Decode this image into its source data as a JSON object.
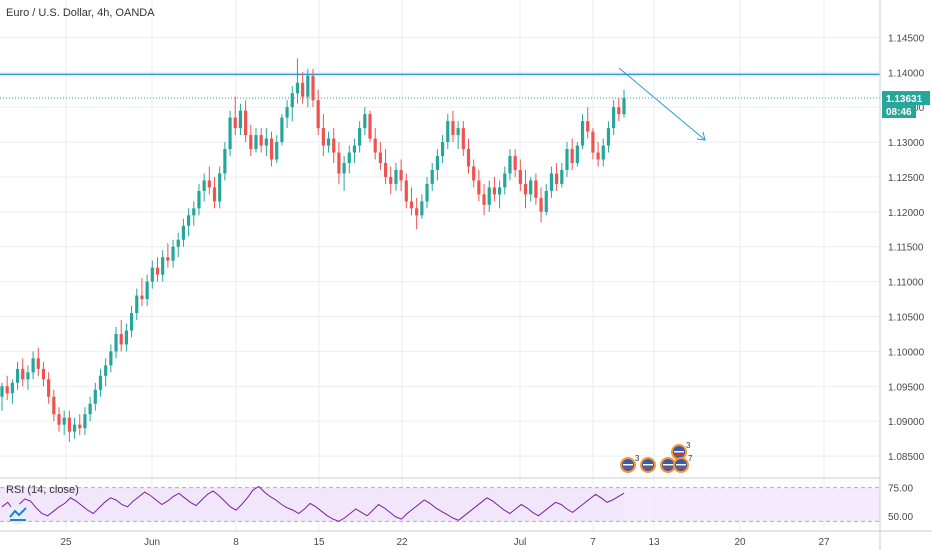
{
  "chart_data": {
    "type": "candlestick",
    "title": "Euro / U.S. Dollar, 4h, OANDA",
    "price_axis": {
      "ylim": [
        1.082,
        1.1495
      ],
      "ticks": [
        "1.14500",
        "1.14000",
        "1.13500",
        "1.13000",
        "1.12500",
        "1.12000",
        "1.11500",
        "1.11000",
        "1.10500",
        "1.10000",
        "1.09500",
        "1.09000",
        "1.08500"
      ],
      "tick_values": [
        1.145,
        1.14,
        1.135,
        1.13,
        1.125,
        1.12,
        1.115,
        1.11,
        1.105,
        1.1,
        1.095,
        1.09,
        1.085
      ]
    },
    "time_axis": {
      "labels": [
        "25",
        "Jun",
        "8",
        "15",
        "22",
        "Jul",
        "7",
        "13",
        "20",
        "27"
      ]
    },
    "candles": [
      [
        1.0935,
        1.0955,
        1.0915,
        1.095
      ],
      [
        1.095,
        1.0965,
        1.093,
        1.094
      ],
      [
        1.094,
        1.096,
        1.0925,
        1.0955
      ],
      [
        1.0955,
        1.0985,
        1.0945,
        1.0975
      ],
      [
        1.0975,
        1.099,
        1.095,
        1.096
      ],
      [
        1.096,
        1.098,
        1.0945,
        1.097
      ],
      [
        1.097,
        1.1,
        1.096,
        1.099
      ],
      [
        1.099,
        1.1005,
        1.0965,
        1.0975
      ],
      [
        1.0975,
        1.0985,
        1.095,
        1.096
      ],
      [
        1.096,
        1.097,
        1.0925,
        1.0935
      ],
      [
        1.0935,
        1.0945,
        1.09,
        1.091
      ],
      [
        1.091,
        1.092,
        1.0885,
        1.0895
      ],
      [
        1.0895,
        1.0915,
        1.088,
        1.0905
      ],
      [
        1.0905,
        1.0915,
        1.087,
        1.0885
      ],
      [
        1.0885,
        1.0905,
        1.0875,
        1.0895
      ],
      [
        1.0895,
        1.091,
        1.088,
        1.089
      ],
      [
        1.089,
        1.092,
        1.088,
        1.091
      ],
      [
        1.091,
        1.0935,
        1.09,
        1.0925
      ],
      [
        1.0925,
        1.0955,
        1.0915,
        1.0945
      ],
      [
        1.0945,
        1.0975,
        1.0935,
        1.0965
      ],
      [
        1.0965,
        1.099,
        1.095,
        1.098
      ],
      [
        1.098,
        1.101,
        1.097,
        1.1
      ],
      [
        1.1,
        1.1035,
        1.099,
        1.1025
      ],
      [
        1.1025,
        1.1045,
        1.1,
        1.101
      ],
      [
        1.101,
        1.104,
        1.1,
        1.103
      ],
      [
        1.103,
        1.1065,
        1.102,
        1.1055
      ],
      [
        1.1055,
        1.109,
        1.1045,
        1.108
      ],
      [
        1.108,
        1.1105,
        1.1065,
        1.1075
      ],
      [
        1.1075,
        1.111,
        1.1065,
        1.11
      ],
      [
        1.11,
        1.113,
        1.109,
        1.112
      ],
      [
        1.112,
        1.1135,
        1.11,
        1.111
      ],
      [
        1.111,
        1.1145,
        1.11,
        1.1135
      ],
      [
        1.1135,
        1.1155,
        1.112,
        1.113
      ],
      [
        1.113,
        1.116,
        1.112,
        1.115
      ],
      [
        1.115,
        1.117,
        1.1135,
        1.116
      ],
      [
        1.116,
        1.119,
        1.115,
        1.118
      ],
      [
        1.118,
        1.1205,
        1.1165,
        1.1195
      ],
      [
        1.1195,
        1.1215,
        1.118,
        1.1205
      ],
      [
        1.1205,
        1.124,
        1.1195,
        1.123
      ],
      [
        1.123,
        1.1255,
        1.1215,
        1.1245
      ],
      [
        1.1245,
        1.1265,
        1.1225,
        1.1235
      ],
      [
        1.1235,
        1.125,
        1.1205,
        1.1215
      ],
      [
        1.1215,
        1.1265,
        1.1205,
        1.1255
      ],
      [
        1.1255,
        1.13,
        1.1245,
        1.129
      ],
      [
        1.129,
        1.1345,
        1.128,
        1.1335
      ],
      [
        1.1335,
        1.1365,
        1.131,
        1.132
      ],
      [
        1.132,
        1.1355,
        1.131,
        1.1345
      ],
      [
        1.1345,
        1.136,
        1.13,
        1.131
      ],
      [
        1.131,
        1.1325,
        1.128,
        1.129
      ],
      [
        1.129,
        1.132,
        1.1285,
        1.131
      ],
      [
        1.131,
        1.132,
        1.1285,
        1.1295
      ],
      [
        1.1295,
        1.132,
        1.128,
        1.1305
      ],
      [
        1.1305,
        1.1315,
        1.1265,
        1.1275
      ],
      [
        1.1275,
        1.131,
        1.127,
        1.13
      ],
      [
        1.13,
        1.134,
        1.1295,
        1.1335
      ],
      [
        1.1335,
        1.136,
        1.132,
        1.135
      ],
      [
        1.135,
        1.138,
        1.133,
        1.137
      ],
      [
        1.137,
        1.142,
        1.1355,
        1.1385
      ],
      [
        1.1385,
        1.14,
        1.1355,
        1.1365
      ],
      [
        1.1365,
        1.1405,
        1.135,
        1.1395
      ],
      [
        1.1395,
        1.1405,
        1.135,
        1.136
      ],
      [
        1.136,
        1.1375,
        1.131,
        1.132
      ],
      [
        1.132,
        1.134,
        1.128,
        1.1295
      ],
      [
        1.1295,
        1.1315,
        1.1285,
        1.1305
      ],
      [
        1.1305,
        1.132,
        1.127,
        1.1285
      ],
      [
        1.1285,
        1.13,
        1.124,
        1.1255
      ],
      [
        1.1255,
        1.128,
        1.123,
        1.127
      ],
      [
        1.127,
        1.1295,
        1.1255,
        1.1285
      ],
      [
        1.1285,
        1.1305,
        1.127,
        1.1295
      ],
      [
        1.1295,
        1.133,
        1.1285,
        1.132
      ],
      [
        1.132,
        1.135,
        1.131,
        1.134
      ],
      [
        1.134,
        1.1345,
        1.13,
        1.1305
      ],
      [
        1.1305,
        1.132,
        1.1275,
        1.1285
      ],
      [
        1.1285,
        1.13,
        1.126,
        1.127
      ],
      [
        1.127,
        1.129,
        1.124,
        1.125
      ],
      [
        1.125,
        1.1265,
        1.1225,
        1.124
      ],
      [
        1.124,
        1.127,
        1.123,
        1.126
      ],
      [
        1.126,
        1.1275,
        1.123,
        1.1245
      ],
      [
        1.1245,
        1.1255,
        1.1205,
        1.1215
      ],
      [
        1.1215,
        1.1235,
        1.1195,
        1.1205
      ],
      [
        1.1205,
        1.122,
        1.1175,
        1.1195
      ],
      [
        1.1195,
        1.1225,
        1.119,
        1.1215
      ],
      [
        1.1215,
        1.125,
        1.1205,
        1.124
      ],
      [
        1.124,
        1.127,
        1.123,
        1.126
      ],
      [
        1.126,
        1.129,
        1.1245,
        1.128
      ],
      [
        1.128,
        1.131,
        1.127,
        1.13
      ],
      [
        1.13,
        1.134,
        1.129,
        1.133
      ],
      [
        1.133,
        1.1345,
        1.13,
        1.131
      ],
      [
        1.131,
        1.133,
        1.129,
        1.132
      ],
      [
        1.132,
        1.133,
        1.128,
        1.129
      ],
      [
        1.129,
        1.1305,
        1.1255,
        1.1265
      ],
      [
        1.1265,
        1.1275,
        1.1235,
        1.1245
      ],
      [
        1.1245,
        1.126,
        1.1215,
        1.1225
      ],
      [
        1.1225,
        1.124,
        1.1195,
        1.121
      ],
      [
        1.121,
        1.1245,
        1.12,
        1.1235
      ],
      [
        1.1235,
        1.125,
        1.1215,
        1.1225
      ],
      [
        1.1225,
        1.1245,
        1.1205,
        1.1235
      ],
      [
        1.1235,
        1.1265,
        1.1225,
        1.1255
      ],
      [
        1.1255,
        1.129,
        1.1245,
        1.128
      ],
      [
        1.128,
        1.129,
        1.125,
        1.126
      ],
      [
        1.126,
        1.1275,
        1.123,
        1.124
      ],
      [
        1.124,
        1.126,
        1.1205,
        1.1225
      ],
      [
        1.1225,
        1.125,
        1.1215,
        1.1245
      ],
      [
        1.1245,
        1.1255,
        1.121,
        1.122
      ],
      [
        1.122,
        1.1235,
        1.1185,
        1.12
      ],
      [
        1.12,
        1.124,
        1.1195,
        1.123
      ],
      [
        1.123,
        1.1265,
        1.122,
        1.1255
      ],
      [
        1.1255,
        1.127,
        1.123,
        1.124
      ],
      [
        1.124,
        1.127,
        1.1235,
        1.126
      ],
      [
        1.126,
        1.13,
        1.125,
        1.129
      ],
      [
        1.129,
        1.1305,
        1.126,
        1.127
      ],
      [
        1.127,
        1.13,
        1.1265,
        1.1295
      ],
      [
        1.1295,
        1.134,
        1.129,
        1.133
      ],
      [
        1.133,
        1.135,
        1.1305,
        1.1315
      ],
      [
        1.1315,
        1.132,
        1.1275,
        1.1285
      ],
      [
        1.1285,
        1.13,
        1.1265,
        1.1275
      ],
      [
        1.1275,
        1.1305,
        1.1265,
        1.1295
      ],
      [
        1.1295,
        1.133,
        1.1285,
        1.132
      ],
      [
        1.132,
        1.136,
        1.131,
        1.135
      ],
      [
        1.135,
        1.1363,
        1.133,
        1.134
      ],
      [
        1.134,
        1.1375,
        1.1335,
        1.1363
      ]
    ],
    "horizontal_line": {
      "price": 1.1397,
      "color": "#2a9ad6"
    },
    "last_price": {
      "value": 1.13631,
      "label": "1.13631",
      "countdown": "08:46"
    },
    "trend_arrow": {
      "color": "#2a9ad6"
    },
    "rsi": {
      "label": "RSI (14, close)",
      "ylim": [
        40,
        80
      ],
      "upper": 70,
      "lower": 30,
      "ticks": [
        "75.00",
        "50.00"
      ],
      "tick_values": [
        75,
        50
      ],
      "values": [
        58,
        62,
        55,
        60,
        65,
        63,
        57,
        52,
        50,
        54,
        58,
        61,
        66,
        63,
        59,
        55,
        52,
        57,
        62,
        66,
        64,
        60,
        58,
        63,
        67,
        71,
        68,
        64,
        60,
        63,
        67,
        70,
        66,
        62,
        59,
        64,
        69,
        72,
        68,
        63,
        58,
        55,
        60,
        66,
        73,
        76,
        71,
        67,
        64,
        60,
        57,
        55,
        52,
        56,
        61,
        58,
        54,
        50,
        47,
        45,
        48,
        52,
        56,
        53,
        50,
        55,
        60,
        57,
        53,
        49,
        47,
        52,
        56,
        60,
        64,
        61,
        57,
        54,
        51,
        48,
        46,
        50,
        54,
        58,
        62,
        66,
        63,
        59,
        55,
        52,
        56,
        60,
        57,
        53,
        50,
        54,
        58,
        62,
        60,
        56,
        53,
        57,
        61,
        65,
        69,
        66,
        62,
        64,
        67,
        70
      ]
    },
    "colors": {
      "up": "#26a69a",
      "down": "#ef5350",
      "grid": "#e9edf2",
      "rsi_line": "#7b1fa2",
      "rsi_band": "#f2e6fb"
    },
    "event_badges": {
      "row1": [
        "3"
      ],
      "row2": [
        "3",
        "7"
      ]
    }
  }
}
